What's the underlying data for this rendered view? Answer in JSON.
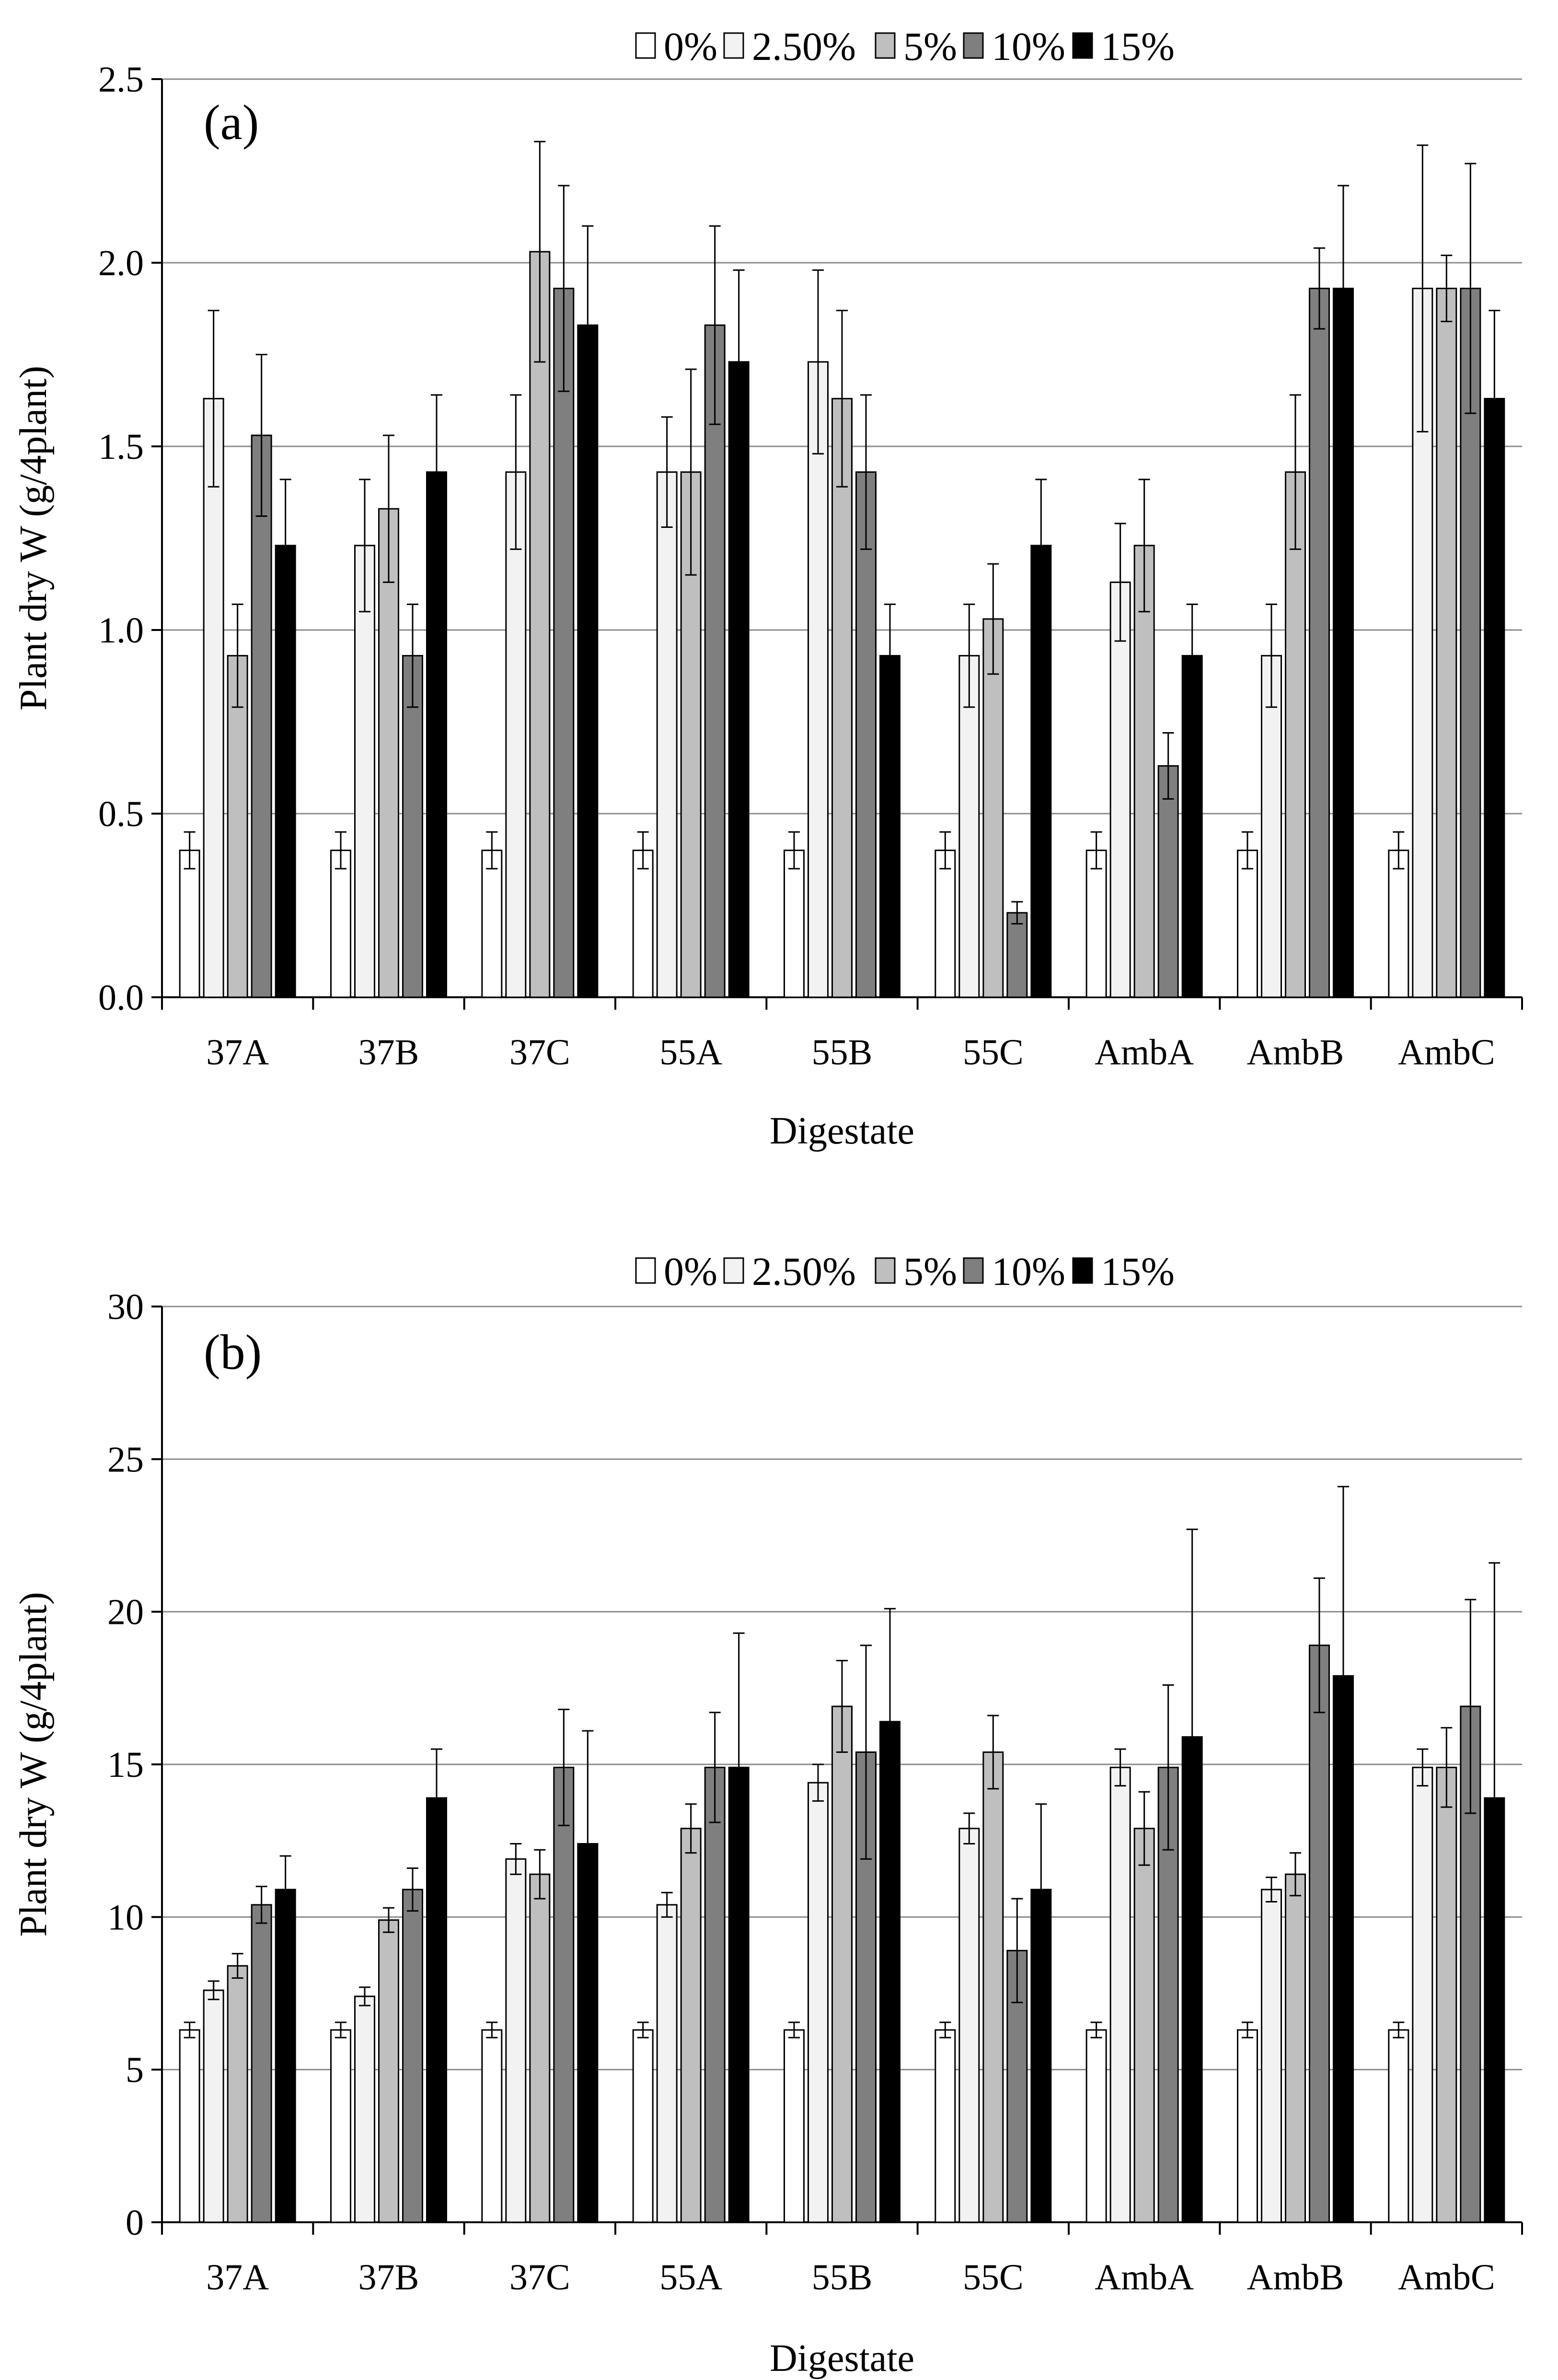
{
  "chart_data": [
    {
      "type": "bar",
      "panel_label": "(a)",
      "xlabel": "Digestate",
      "ylabel": "Plant dry W (g/4plant)",
      "ylim": [
        0,
        2.5
      ],
      "yticks": [
        "0.0",
        "0.5",
        "1.0",
        "1.5",
        "2.0",
        "2.5"
      ],
      "grid": true,
      "legend_position": "top",
      "categories": [
        "37A",
        "37B",
        "37C",
        "55A",
        "55B",
        "55C",
        "AmbA",
        "AmbB",
        "AmbC"
      ],
      "series": [
        {
          "name": "0%",
          "color": "#ffffff",
          "values": [
            0.4,
            0.4,
            0.4,
            0.4,
            0.4,
            0.4,
            0.4,
            0.4,
            0.4
          ],
          "errors": [
            0.05,
            0.05,
            0.05,
            0.05,
            0.05,
            0.05,
            0.05,
            0.05,
            0.05
          ]
        },
        {
          "name": "2.50%",
          "color": "#f2f2f2",
          "values": [
            1.63,
            1.23,
            1.43,
            1.43,
            1.73,
            0.93,
            1.13,
            0.93,
            1.93
          ],
          "errors": [
            0.24,
            0.18,
            0.21,
            0.15,
            0.25,
            0.14,
            0.16,
            0.14,
            0.39
          ]
        },
        {
          "name": "5%",
          "color": "#bfbfbf",
          "values": [
            0.93,
            1.33,
            2.03,
            1.43,
            1.63,
            1.03,
            1.23,
            1.43,
            1.93
          ],
          "errors": [
            0.14,
            0.2,
            0.3,
            0.28,
            0.24,
            0.15,
            0.18,
            0.21,
            0.09
          ]
        },
        {
          "name": "10%",
          "color": "#7f7f7f",
          "values": [
            1.53,
            0.93,
            1.93,
            1.83,
            1.43,
            0.23,
            0.63,
            1.93,
            1.93
          ],
          "errors": [
            0.22,
            0.14,
            0.28,
            0.27,
            0.21,
            0.03,
            0.09,
            0.11,
            0.34
          ]
        },
        {
          "name": "15%",
          "color": "#000000",
          "values": [
            1.23,
            1.43,
            1.83,
            1.73,
            0.93,
            1.23,
            0.93,
            1.93,
            1.63
          ],
          "errors": [
            0.18,
            0.21,
            0.27,
            0.25,
            0.14,
            0.18,
            0.14,
            0.28,
            0.24
          ]
        }
      ]
    },
    {
      "type": "bar",
      "panel_label": "(b)",
      "xlabel": "Digestate",
      "ylabel": "Plant dry W (g/4plant)",
      "ylim": [
        0,
        30
      ],
      "yticks": [
        "0",
        "5",
        "10",
        "15",
        "20",
        "25",
        "30"
      ],
      "grid": true,
      "legend_position": "top",
      "categories": [
        "37A",
        "37B",
        "37C",
        "55A",
        "55B",
        "55C",
        "AmbA",
        "AmbB",
        "AmbC"
      ],
      "series": [
        {
          "name": "0%",
          "color": "#ffffff",
          "values": [
            6.3,
            6.3,
            6.3,
            6.3,
            6.3,
            6.3,
            6.3,
            6.3,
            6.3
          ],
          "errors": [
            0.25,
            0.25,
            0.25,
            0.25,
            0.25,
            0.25,
            0.25,
            0.25,
            0.25
          ]
        },
        {
          "name": "2.50%",
          "color": "#f2f2f2",
          "values": [
            7.6,
            7.4,
            11.9,
            10.4,
            14.4,
            12.9,
            14.9,
            10.9,
            14.9
          ],
          "errors": [
            0.3,
            0.3,
            0.5,
            0.4,
            0.6,
            0.5,
            0.6,
            0.4,
            0.6
          ]
        },
        {
          "name": "5%",
          "color": "#bfbfbf",
          "values": [
            8.4,
            9.9,
            11.4,
            12.9,
            16.9,
            15.4,
            12.9,
            11.4,
            14.9
          ],
          "errors": [
            0.4,
            0.4,
            0.8,
            0.8,
            1.5,
            1.2,
            1.2,
            0.7,
            1.3
          ]
        },
        {
          "name": "10%",
          "color": "#7f7f7f",
          "values": [
            10.4,
            10.9,
            14.9,
            14.9,
            15.4,
            8.9,
            14.9,
            18.9,
            16.9
          ],
          "errors": [
            0.6,
            0.7,
            1.9,
            1.8,
            3.5,
            1.7,
            2.7,
            2.2,
            3.5
          ]
        },
        {
          "name": "15%",
          "color": "#000000",
          "values": [
            10.9,
            13.9,
            12.4,
            14.9,
            16.4,
            10.9,
            15.9,
            17.9,
            13.9
          ],
          "errors": [
            1.1,
            1.6,
            3.7,
            4.4,
            3.7,
            2.8,
            6.8,
            6.2,
            7.7
          ]
        }
      ]
    }
  ]
}
